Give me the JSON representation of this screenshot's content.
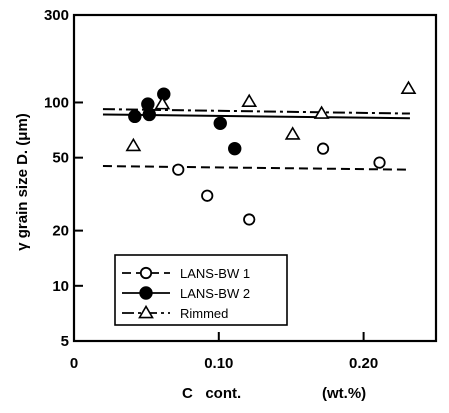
{
  "chart_data": {
    "type": "scatter",
    "x_axis": {
      "range": [
        0,
        0.25
      ],
      "ticks": [
        0,
        0.1,
        0.2
      ],
      "tick_labels": [
        "0",
        "0.10",
        "0.20"
      ],
      "label": "C   cont.",
      "unit_label": "(wt.%)"
    },
    "y_axis": {
      "scale": "log",
      "range": [
        5,
        300
      ],
      "ticks": [
        5,
        10,
        20,
        50,
        100,
        300
      ],
      "tick_labels": [
        "5",
        "10",
        "20",
        "50",
        "100",
        "300"
      ],
      "label": "γ grain size D.  (μm)"
    },
    "grid": false,
    "legend_position": "bottom-left",
    "series": [
      {
        "name": "LANS-BW 1",
        "marker": "open-circle",
        "line_style": "dashed",
        "points": [
          {
            "x": 0.072,
            "y": 43
          },
          {
            "x": 0.092,
            "y": 31
          },
          {
            "x": 0.121,
            "y": 23
          },
          {
            "x": 0.172,
            "y": 56
          },
          {
            "x": 0.211,
            "y": 47
          }
        ],
        "fit_line": {
          "x": [
            0.02,
            0.232
          ],
          "y": [
            45,
            43
          ]
        }
      },
      {
        "name": "LANS-BW 2",
        "marker": "filled-circle",
        "line_style": "solid",
        "points": [
          {
            "x": 0.042,
            "y": 84
          },
          {
            "x": 0.051,
            "y": 98
          },
          {
            "x": 0.052,
            "y": 86
          },
          {
            "x": 0.062,
            "y": 111
          },
          {
            "x": 0.101,
            "y": 77
          },
          {
            "x": 0.111,
            "y": 56
          }
        ],
        "fit_line": {
          "x": [
            0.02,
            0.232
          ],
          "y": [
            86,
            82
          ]
        }
      },
      {
        "name": "Rimmed",
        "marker": "open-triangle",
        "line_style": "dash-dot",
        "points": [
          {
            "x": 0.041,
            "y": 58
          },
          {
            "x": 0.061,
            "y": 98
          },
          {
            "x": 0.121,
            "y": 101
          },
          {
            "x": 0.151,
            "y": 67
          },
          {
            "x": 0.171,
            "y": 87
          },
          {
            "x": 0.231,
            "y": 119
          }
        ],
        "fit_line": {
          "x": [
            0.02,
            0.232
          ],
          "y": [
            92,
            87
          ]
        }
      }
    ]
  }
}
